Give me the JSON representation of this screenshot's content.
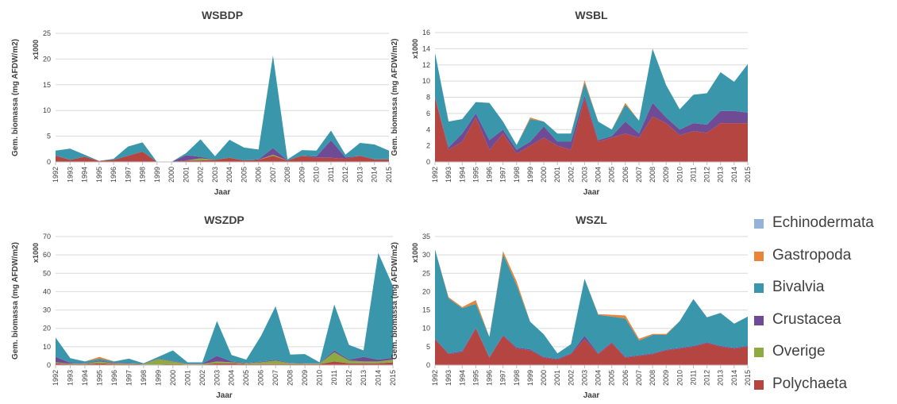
{
  "years": [
    "1992",
    "1993",
    "1994",
    "1995",
    "1996",
    "1997",
    "1998",
    "1999",
    "2000",
    "2001",
    "2002",
    "2003",
    "2004",
    "2005",
    "2006",
    "2007",
    "2008",
    "2009",
    "2010",
    "2011",
    "2012",
    "2013",
    "2014",
    "2015"
  ],
  "legend": {
    "items": [
      {
        "name": "Echinodermata",
        "color": "#95b3d7"
      },
      {
        "name": "Gastropoda",
        "color": "#e8853b"
      },
      {
        "name": "Bivalvia",
        "color": "#3a97ab"
      },
      {
        "name": "Crustacea",
        "color": "#6f4b95"
      },
      {
        "name": "Overige",
        "color": "#8eaa43"
      },
      {
        "name": "Polychaeta",
        "color": "#b54541"
      }
    ]
  },
  "chart_data": [
    {
      "type": "area",
      "title": "WSBDP",
      "xlabel": "Jaar",
      "ylabel": "Gem. biomassa (mg AFDW/m2)",
      "y_unit_label": "x1000",
      "ylim": [
        0,
        25
      ],
      "yticks": [
        0,
        5,
        10,
        15,
        20,
        25
      ],
      "stacked": true,
      "series": [
        {
          "name": "Polychaeta",
          "values": [
            1.2,
            0.4,
            1.0,
            0.2,
            0.4,
            1.2,
            2.0,
            0.0,
            0.0,
            0.3,
            0.3,
            0.4,
            0.8,
            0.3,
            0.4,
            1.2,
            0.3,
            1.2,
            0.8,
            0.8,
            0.6,
            1.2,
            0.5,
            0.5
          ]
        },
        {
          "name": "Overige",
          "values": [
            0,
            0,
            0,
            0,
            0,
            0,
            0,
            0,
            0,
            0,
            0.4,
            0,
            0,
            0,
            0,
            0.2,
            0,
            0,
            0,
            0,
            0,
            0,
            0,
            0
          ]
        },
        {
          "name": "Crustacea",
          "values": [
            0.1,
            0,
            0,
            0,
            0,
            0,
            0,
            0,
            0,
            1.0,
            0.3,
            0,
            0,
            0,
            0.1,
            1.3,
            0,
            0,
            0.3,
            3.4,
            0.3,
            0,
            0,
            0
          ]
        },
        {
          "name": "Bivalvia",
          "values": [
            0.9,
            2.2,
            0.4,
            0,
            0.2,
            1.8,
            1.8,
            0,
            0,
            0.4,
            3.4,
            0.7,
            3.5,
            2.5,
            1.9,
            18.0,
            0.2,
            1.1,
            1.1,
            1.9,
            0.5,
            2.5,
            2.9,
            1.7
          ]
        },
        {
          "name": "Gastropoda",
          "values": [
            0,
            0,
            0,
            0,
            0,
            0,
            0,
            0,
            0,
            0,
            0,
            0,
            0,
            0,
            0,
            0,
            0,
            0,
            0,
            0,
            0,
            0,
            0,
            0
          ]
        },
        {
          "name": "Echinodermata",
          "values": [
            0,
            0,
            0,
            0,
            0,
            0,
            0,
            0,
            0,
            0,
            0,
            0,
            0,
            0,
            0,
            0,
            0,
            0,
            0,
            0,
            0,
            0,
            0,
            0
          ]
        }
      ]
    },
    {
      "type": "area",
      "title": "WSBL",
      "xlabel": "Jaar",
      "ylabel": "Gem. biomassa (mg AFDW/m2)",
      "y_unit_label": "x1000",
      "ylim": [
        0,
        16
      ],
      "yticks": [
        0,
        2,
        4,
        6,
        8,
        10,
        12,
        14,
        16
      ],
      "stacked": true,
      "series": [
        {
          "name": "Polychaeta",
          "values": [
            8.0,
            1.5,
            2.5,
            5.5,
            1.5,
            3.5,
            1.0,
            2.0,
            3.0,
            2.0,
            1.5,
            7.8,
            2.5,
            3.0,
            3.5,
            3.0,
            5.6,
            4.8,
            3.3,
            3.8,
            3.6,
            4.8,
            4.8,
            4.8
          ]
        },
        {
          "name": "Overige",
          "values": [
            0,
            0,
            0,
            0,
            0,
            0,
            0,
            0,
            0,
            0,
            0,
            0,
            0,
            0,
            0,
            0,
            0,
            0,
            0,
            0,
            0,
            0,
            0,
            0
          ]
        },
        {
          "name": "Crustacea",
          "values": [
            0,
            0.3,
            1.0,
            0.5,
            1.2,
            0.5,
            0.5,
            0.5,
            1.4,
            0.5,
            1.0,
            0.4,
            0.2,
            0.2,
            1.5,
            0.5,
            1.7,
            0.7,
            0.7,
            1.0,
            1.0,
            1.5,
            1.5,
            1.3
          ]
        },
        {
          "name": "Bivalvia",
          "values": [
            5.5,
            3.2,
            1.8,
            1.4,
            4.6,
            1.0,
            0.6,
            2.8,
            0.6,
            1.0,
            1.0,
            1.6,
            2.3,
            0.8,
            2.1,
            1.6,
            6.7,
            4.0,
            2.5,
            3.5,
            3.9,
            4.8,
            3.6,
            6.0
          ]
        },
        {
          "name": "Gastropoda",
          "values": [
            0,
            0,
            0,
            0,
            0,
            0,
            0,
            0.2,
            0,
            0,
            0,
            0.3,
            0,
            0,
            0.2,
            0,
            0,
            0,
            0,
            0,
            0,
            0,
            0,
            0
          ]
        },
        {
          "name": "Echinodermata",
          "values": [
            0,
            0,
            0,
            0,
            0,
            0,
            0,
            0,
            0,
            0,
            0,
            0,
            0,
            0,
            0,
            0,
            0,
            0,
            0,
            0,
            0,
            0,
            0,
            0
          ]
        }
      ]
    },
    {
      "type": "area",
      "title": "WSZDP",
      "xlabel": "Jaar",
      "ylabel": "Gem. biomassa (mg AFDW/m2)",
      "y_unit_label": "x1000",
      "ylim": [
        0,
        70
      ],
      "yticks": [
        0,
        10,
        20,
        30,
        40,
        50,
        60,
        70
      ],
      "stacked": true,
      "series": [
        {
          "name": "Polychaeta",
          "values": [
            1.0,
            0.5,
            0.5,
            1.0,
            0.5,
            0.5,
            0.3,
            0.3,
            0.5,
            0.3,
            0.3,
            1.0,
            1.0,
            0.5,
            0.5,
            0.5,
            0.5,
            0.5,
            0.5,
            2.0,
            1.0,
            1.0,
            1.0,
            1.5
          ]
        },
        {
          "name": "Overige",
          "values": [
            0.5,
            0.3,
            0.3,
            1.0,
            0.5,
            0.3,
            0.3,
            3.0,
            1.5,
            0.3,
            0.3,
            1.0,
            0.5,
            0.5,
            1.0,
            2.0,
            0.5,
            0.3,
            0.3,
            5.0,
            1.5,
            1.0,
            1.0,
            1.5
          ]
        },
        {
          "name": "Crustacea",
          "values": [
            3.0,
            0.5,
            0.2,
            0.5,
            0.3,
            0.3,
            0.2,
            0.2,
            0.3,
            0.2,
            0.2,
            3.0,
            0.5,
            0.2,
            0.3,
            0.5,
            0.2,
            0.2,
            0.2,
            1.0,
            0.5,
            2.5,
            1.0,
            1.0
          ]
        },
        {
          "name": "Bivalvia",
          "values": [
            10.5,
            2.5,
            1.0,
            1.0,
            0.7,
            2.4,
            0.2,
            1.0,
            5.7,
            0.7,
            0.7,
            19.0,
            3.5,
            1.8,
            14.0,
            29.0,
            4.5,
            5.0,
            0.5,
            25.0,
            8.0,
            3.5,
            58.0,
            39.0
          ]
        },
        {
          "name": "Gastropoda",
          "values": [
            0,
            0,
            0,
            1.0,
            0,
            0,
            0,
            0,
            0,
            0,
            0,
            0,
            0,
            0,
            0,
            0,
            0,
            0,
            0,
            0,
            0,
            0,
            0,
            0
          ]
        },
        {
          "name": "Echinodermata",
          "values": [
            0,
            0,
            0,
            0,
            0,
            0,
            0,
            0,
            0,
            0,
            0,
            0,
            0,
            0,
            0,
            0,
            0,
            0,
            0,
            0,
            0,
            0,
            0,
            0
          ]
        }
      ]
    },
    {
      "type": "area",
      "title": "WSZL",
      "xlabel": "Jaar",
      "ylabel": "Gem. biomassa (mg AFDW/m2)",
      "y_unit_label": "x1000",
      "ylim": [
        0,
        35
      ],
      "yticks": [
        0,
        5,
        10,
        15,
        20,
        25,
        30,
        35
      ],
      "stacked": true,
      "series": [
        {
          "name": "Polychaeta",
          "values": [
            7.0,
            3.0,
            3.5,
            10.0,
            2.0,
            8.0,
            4.5,
            4.0,
            2.0,
            1.5,
            3.0,
            7.0,
            3.0,
            6.0,
            2.0,
            2.5,
            3.0,
            4.0,
            4.5,
            5.0,
            6.0,
            5.0,
            4.5,
            5.0
          ]
        },
        {
          "name": "Overige",
          "values": [
            0,
            0,
            0,
            0,
            0,
            0,
            0,
            0,
            0,
            0,
            0,
            0,
            0,
            0,
            0,
            0,
            0,
            0,
            0,
            0,
            0,
            0,
            0,
            0
          ]
        },
        {
          "name": "Crustacea",
          "values": [
            0.2,
            0.2,
            0.3,
            0.2,
            0.2,
            0.2,
            0.3,
            0.3,
            0.2,
            0.2,
            0.2,
            1.0,
            0.2,
            0.2,
            0.2,
            0.2,
            0.2,
            0.2,
            0.2,
            0.2,
            0.2,
            0.2,
            0.2,
            0.2
          ]
        },
        {
          "name": "Bivalvia",
          "values": [
            24.3,
            15.0,
            11.7,
            6.5,
            5.5,
            22.0,
            17.0,
            7.5,
            6.2,
            1.5,
            2.5,
            15.5,
            10.5,
            7.0,
            10.5,
            4.0,
            5.0,
            4.0,
            7.3,
            12.8,
            6.8,
            9.0,
            6.6,
            8.0
          ]
        },
        {
          "name": "Gastropoda",
          "values": [
            0,
            0.3,
            0.3,
            1.0,
            0,
            0.8,
            1.0,
            0,
            0,
            0,
            0,
            0,
            0.2,
            0.5,
            0.8,
            0.5,
            0.3,
            0.3,
            0,
            0,
            0,
            0,
            0,
            0
          ]
        },
        {
          "name": "Echinodermata",
          "values": [
            0,
            0,
            0,
            0,
            0,
            0,
            0,
            0,
            0,
            0,
            0,
            0,
            0,
            0,
            0,
            0,
            0,
            0,
            0,
            0,
            0,
            0,
            0,
            0
          ]
        }
      ]
    }
  ]
}
